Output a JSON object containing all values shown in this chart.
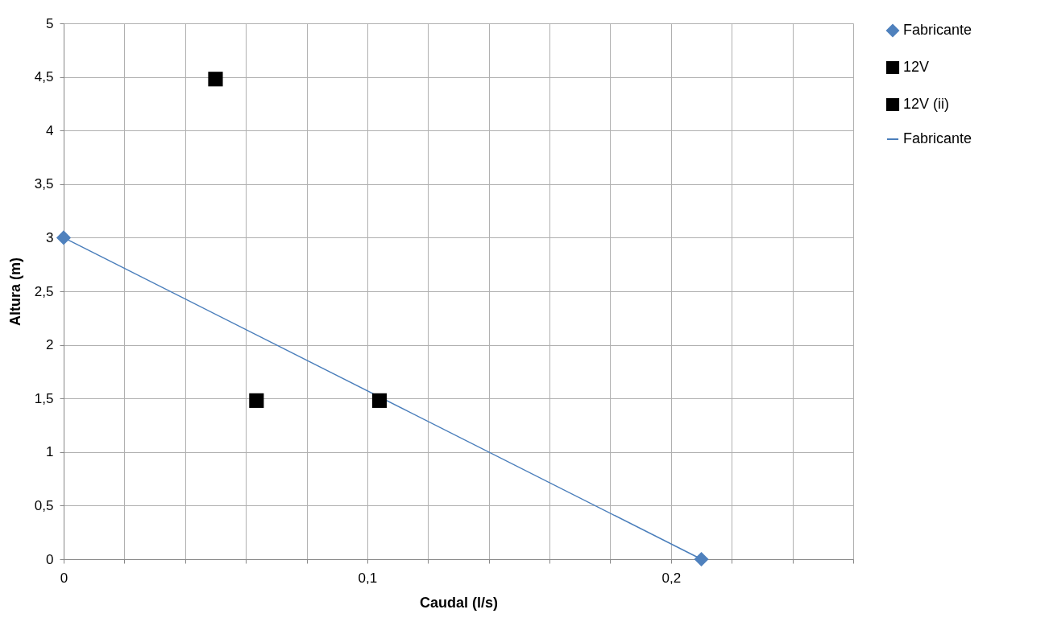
{
  "chart_data": {
    "type": "scatter",
    "xlabel": "Caudal (l/s)",
    "ylabel": "Altura (m)",
    "xlim": [
      0,
      0.26
    ],
    "ylim": [
      0,
      5
    ],
    "xticks": [
      0,
      {
        "value": 0.02,
        "label": null
      },
      {
        "value": 0.04,
        "label": null
      },
      {
        "value": 0.06,
        "label": null
      },
      {
        "value": 0.08,
        "label": null
      },
      {
        "value": 0.1,
        "label": "0,1"
      },
      {
        "value": 0.12,
        "label": null
      },
      {
        "value": 0.14,
        "label": null
      },
      {
        "value": 0.16,
        "label": null
      },
      {
        "value": 0.18,
        "label": null
      },
      {
        "value": 0.2,
        "label": "0,2"
      },
      {
        "value": 0.22,
        "label": null
      },
      {
        "value": 0.24,
        "label": null
      },
      {
        "value": 0.26,
        "label": null
      }
    ],
    "yticks": [
      0,
      {
        "value": 0.5,
        "label": "0,5"
      },
      1,
      {
        "value": 1.5,
        "label": "1,5"
      },
      2,
      {
        "value": 2.5,
        "label": "2,5"
      },
      3,
      {
        "value": 3.5,
        "label": "3,5"
      },
      4,
      {
        "value": 4.5,
        "label": "4,5"
      },
      5
    ],
    "grid": true,
    "legend": "right",
    "series": [
      {
        "name": "Fabricante",
        "type": "scatter",
        "marker": "diamond",
        "color": "#4f81bd",
        "x": [
          0,
          0.21
        ],
        "values": [
          3,
          0
        ]
      },
      {
        "name": "12V",
        "type": "scatter",
        "marker": "square",
        "color": "#000000",
        "x": [
          0.05
        ],
        "values": [
          4.48
        ]
      },
      {
        "name": "12V (ii)",
        "type": "scatter",
        "marker": "square",
        "color": "#000000",
        "x": [
          0.0635,
          0.104
        ],
        "values": [
          1.48,
          1.48
        ]
      },
      {
        "name": "Fabricante",
        "type": "line",
        "color": "#4a7ebb",
        "x": [
          0,
          0.21
        ],
        "values": [
          3,
          0
        ]
      }
    ]
  }
}
